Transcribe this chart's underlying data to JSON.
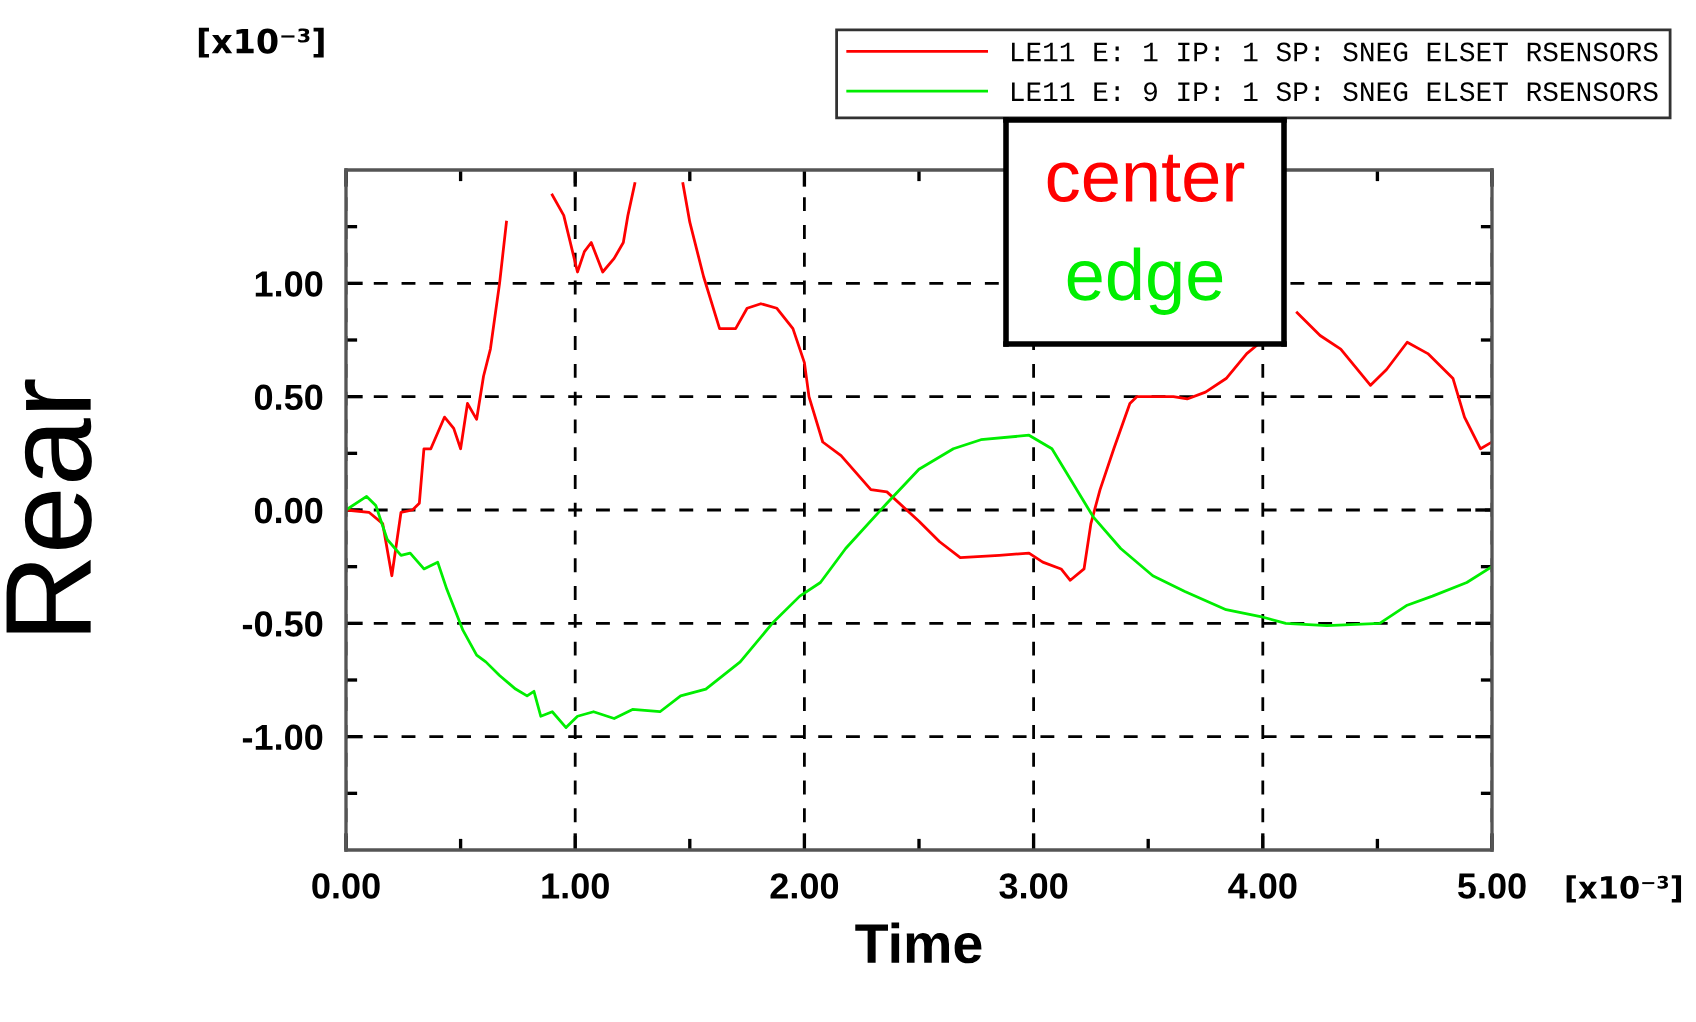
{
  "chart_data": {
    "type": "line",
    "xlabel": "Time",
    "ylabel": "Rear",
    "xlim": [
      0,
      5
    ],
    "ylim": [
      -1.5,
      1.5
    ],
    "xticks": [
      {
        "value": 0,
        "label": "0.00"
      },
      {
        "value": 0.5,
        "label": null
      },
      {
        "value": 1,
        "label": "1.00"
      },
      {
        "value": 1.5,
        "label": null
      },
      {
        "value": 2,
        "label": "2.00"
      },
      {
        "value": 2.5,
        "label": null
      },
      {
        "value": 3,
        "label": "3.00"
      },
      {
        "value": 3.5,
        "label": null
      },
      {
        "value": 4,
        "label": "4.00"
      },
      {
        "value": 4.5,
        "label": null
      },
      {
        "value": 5,
        "label": "5.00"
      }
    ],
    "yticks": [
      {
        "value": -1.25,
        "label": null
      },
      {
        "value": -1,
        "label": "-1.00"
      },
      {
        "value": -0.75,
        "label": null
      },
      {
        "value": -0.5,
        "label": "-0.50"
      },
      {
        "value": -0.25,
        "label": null
      },
      {
        "value": 0,
        "label": "0.00"
      },
      {
        "value": 0.25,
        "label": null
      },
      {
        "value": 0.5,
        "label": "0.50"
      },
      {
        "value": 0.75,
        "label": null
      },
      {
        "value": 1,
        "label": "1.00"
      },
      {
        "value": 1.25,
        "label": null
      }
    ],
    "grid": true,
    "legend": "top",
    "line_style": "solid",
    "marker": "none",
    "annotations": [
      "center",
      "edge",
      "[x10⁻³]",
      "[x10⁻³]"
    ],
    "series": [
      {
        "name": "LE11 E: 1 IP: 1 SP: SNEG ELSET RSENSORS",
        "color": "#ff0000",
        "x": [
          0,
          0.1,
          0.16,
          0.2,
          0.24,
          0.29,
          0.32,
          0.34,
          0.37,
          0.43,
          0.47,
          0.5,
          0.53,
          0.57,
          0.6,
          0.63,
          0.67,
          0.7,
          0.74,
          0.77,
          0.8,
          0.85,
          0.88,
          0.9,
          0.95,
          1.01,
          1.04,
          1.07,
          1.12,
          1.17,
          1.21,
          1.23,
          1.26,
          1.28,
          1.34,
          1.43,
          1.47,
          1.5,
          1.56,
          1.63,
          1.7,
          1.75,
          1.81,
          1.88,
          1.95,
          2.0,
          2.02,
          2.08,
          2.16,
          2.29,
          2.36,
          2.5,
          2.59,
          2.68,
          2.85,
          2.98,
          3.04,
          3.12,
          3.16,
          3.22,
          3.25,
          3.29,
          3.35,
          3.42,
          3.45,
          3.61,
          3.67,
          3.75,
          3.84,
          3.93,
          3.99,
          4.05,
          4.15,
          4.25,
          4.34,
          4.47,
          4.54,
          4.63,
          4.72,
          4.83,
          4.88,
          4.95,
          5.0
        ],
        "values": [
          0,
          -0.01,
          -0.06,
          -0.29,
          -0.01,
          0,
          0.03,
          0.27,
          0.27,
          0.41,
          0.36,
          0.27,
          0.47,
          0.4,
          0.59,
          0.71,
          1.0,
          1.27,
          null,
          null,
          null,
          null,
          null,
          1.39,
          1.3,
          1.05,
          1.14,
          1.18,
          1.05,
          1.11,
          1.18,
          1.3,
          1.44,
          null,
          null,
          null,
          1.44,
          1.27,
          1.03,
          0.8,
          0.8,
          0.89,
          0.91,
          0.89,
          0.8,
          0.65,
          0.5,
          0.3,
          0.24,
          0.09,
          0.08,
          -0.05,
          -0.14,
          -0.21,
          -0.2,
          -0.19,
          -0.23,
          -0.26,
          -0.31,
          -0.26,
          -0.06,
          0.09,
          0.27,
          0.47,
          0.5,
          0.5,
          0.49,
          0.52,
          0.58,
          0.69,
          0.74,
          null,
          0.87,
          0.77,
          0.71,
          0.55,
          0.62,
          0.74,
          0.69,
          0.58,
          0.41,
          0.27,
          0.3
        ]
      },
      {
        "name": "LE11 E: 9 IP: 1 SP: SNEG ELSET RSENSORS",
        "color": "#00ee00",
        "x": [
          0,
          0.09,
          0.13,
          0.18,
          0.24,
          0.28,
          0.34,
          0.4,
          0.44,
          0.51,
          0.57,
          0.61,
          0.67,
          0.74,
          0.79,
          0.82,
          0.85,
          0.9,
          0.96,
          1.01,
          1.08,
          1.17,
          1.25,
          1.37,
          1.46,
          1.57,
          1.72,
          1.86,
          1.98,
          2.07,
          2.18,
          2.36,
          2.5,
          2.65,
          2.77,
          2.98,
          3.08,
          3.17,
          3.26,
          3.38,
          3.52,
          3.66,
          3.84,
          3.99,
          4.1,
          4.28,
          4.51,
          4.63,
          4.74,
          4.89,
          5.0
        ],
        "values": [
          0,
          0.06,
          0.02,
          -0.13,
          -0.2,
          -0.19,
          -0.26,
          -0.23,
          -0.35,
          -0.53,
          -0.64,
          -0.67,
          -0.73,
          -0.79,
          -0.82,
          -0.8,
          -0.91,
          -0.89,
          -0.96,
          -0.91,
          -0.89,
          -0.92,
          -0.88,
          -0.89,
          -0.82,
          -0.79,
          -0.67,
          -0.5,
          -0.38,
          -0.32,
          -0.17,
          0.03,
          0.18,
          0.27,
          0.31,
          0.33,
          0.27,
          0.12,
          -0.03,
          -0.17,
          -0.29,
          -0.36,
          -0.44,
          -0.47,
          -0.5,
          -0.51,
          -0.5,
          -0.42,
          -0.38,
          -0.32,
          -0.25
        ]
      }
    ]
  }
}
